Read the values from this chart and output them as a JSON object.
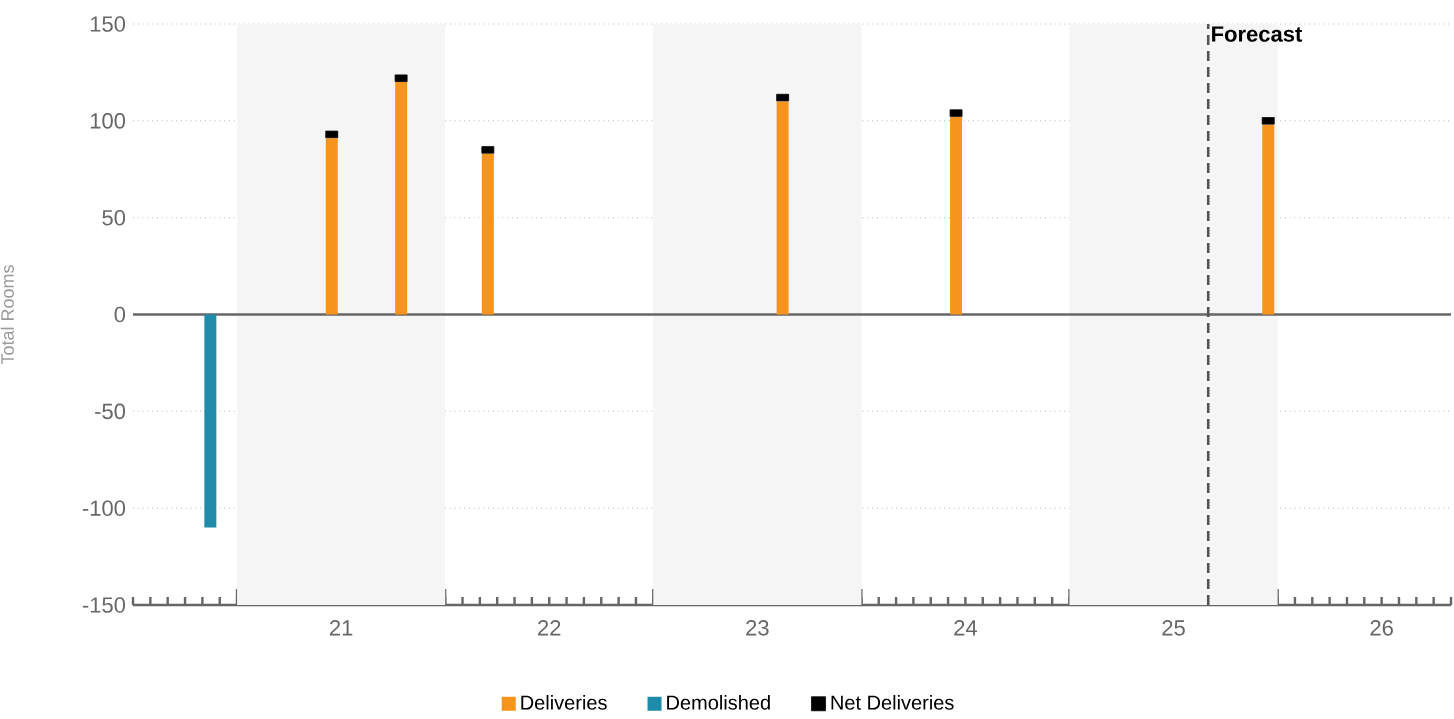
{
  "chart_data": {
    "type": "bar",
    "ylabel": "Total Rooms",
    "xlim": [
      "2020-07-01",
      "2026-11-01"
    ],
    "ylim": [
      -150,
      150
    ],
    "xticks": [
      {
        "value": "2021-01-01",
        "label": null
      },
      {
        "value": "2021-07-01",
        "label": "21"
      },
      {
        "value": "2022-01-01",
        "label": null
      },
      {
        "value": "2022-07-01",
        "label": "22"
      },
      {
        "value": "2023-01-01",
        "label": null
      },
      {
        "value": "2023-07-01",
        "label": "23"
      },
      {
        "value": "2024-01-01",
        "label": null
      },
      {
        "value": "2024-07-01",
        "label": "24"
      },
      {
        "value": "2025-01-01",
        "label": null
      },
      {
        "value": "2025-07-01",
        "label": "25"
      },
      {
        "value": "2026-01-01",
        "label": null
      },
      {
        "value": "2026-07-01",
        "label": "26"
      }
    ],
    "yticks": [
      -150,
      -100,
      -50,
      0,
      50,
      100,
      150
    ],
    "grid": "y",
    "legend": "bottom",
    "series": [
      {
        "name": "Deliveries",
        "color": "#f7941d",
        "x": [
          "2021-06-15",
          "2021-10-15",
          "2022-03-15",
          "2023-08-15",
          "2024-06-15",
          "2025-12-15"
        ],
        "values": [
          91,
          120,
          83,
          110,
          102,
          98
        ]
      },
      {
        "name": "Demolished",
        "color": "#1f8bab",
        "x": [
          "2020-11-15"
        ],
        "values": [
          -110
        ]
      },
      {
        "name": "Net Deliveries",
        "type": "scatter",
        "marker": "square",
        "color": "#000000",
        "x": [
          "2021-06-15",
          "2021-10-15",
          "2022-03-15",
          "2023-08-15",
          "2024-06-15",
          "2025-12-15"
        ],
        "values": [
          93,
          122,
          85,
          112,
          104,
          100
        ]
      }
    ],
    "bands": [
      {
        "axis": "x",
        "from": "2021-01-01",
        "to": "2022-01-01",
        "color": "#f5f5f5"
      },
      {
        "axis": "x",
        "from": "2023-01-01",
        "to": "2024-01-01",
        "color": "#f5f5f5"
      },
      {
        "axis": "x",
        "from": "2025-01-01",
        "to": "2026-01-01",
        "color": "#f5f5f5"
      }
    ],
    "ref_lines": [
      {
        "axis": "x",
        "value": "2025-09-01",
        "label": "Forecast",
        "color": "#555555",
        "line_style": "dashed"
      }
    ]
  }
}
